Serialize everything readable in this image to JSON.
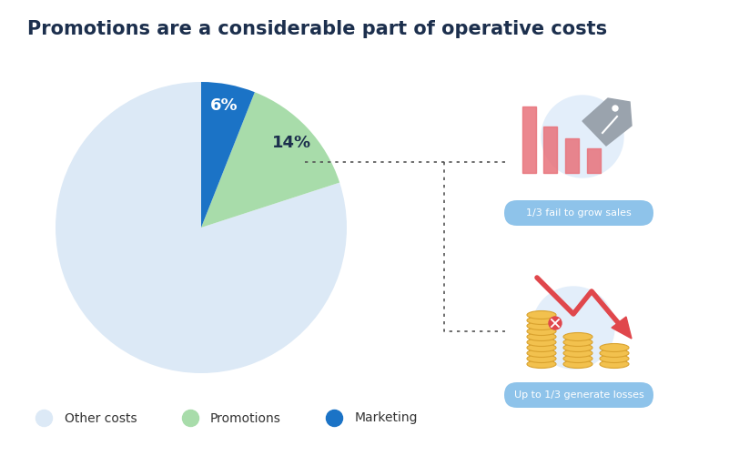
{
  "chart_data": {
    "type": "pie",
    "title": "Promotions are a considerable part of operative costs",
    "categories": [
      "Other costs",
      "Promotions",
      "Marketing"
    ],
    "values": [
      80,
      14,
      6
    ],
    "value_labels": [
      null,
      "14%",
      "6%"
    ],
    "colors": [
      "#dce9f6",
      "#a8dcaa",
      "#1b73c6"
    ],
    "data_labels": true,
    "legend": "lower left",
    "annotations": [
      "1/3 fail to grow sales",
      "Up to 1/3 generate losses"
    ]
  }
}
